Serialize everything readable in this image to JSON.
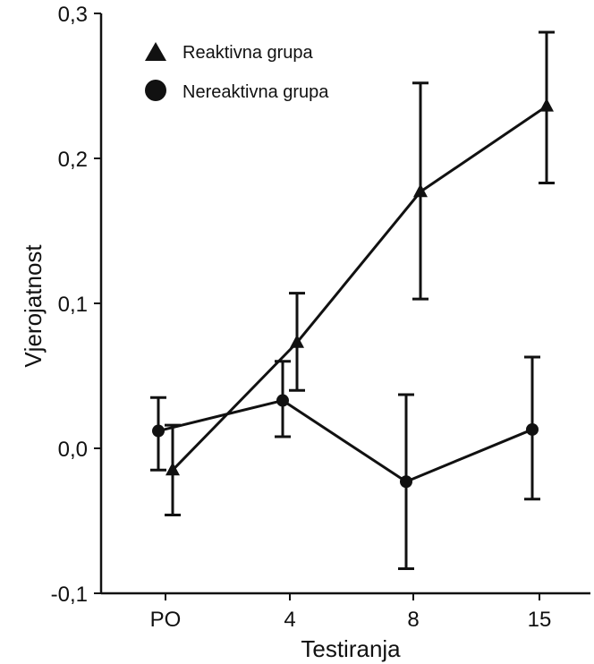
{
  "chart_data": {
    "type": "line",
    "xlabel": "Testiranja",
    "ylabel": "Vjerojatnost",
    "categories": [
      "PO",
      "4",
      "8",
      "15"
    ],
    "ylim": [
      -0.1,
      0.3
    ],
    "yticks": [
      -0.1,
      0.0,
      0.1,
      0.2,
      0.3
    ],
    "ytick_labels": [
      "-0,1",
      "0,0",
      "0,1",
      "0,2",
      "0,3"
    ],
    "grid": false,
    "legend_position": "top-left",
    "series": [
      {
        "name": "Reaktivna grupa",
        "marker": "triangle",
        "values": [
          -0.015,
          0.073,
          0.177,
          0.236
        ],
        "error_low": [
          -0.046,
          0.04,
          0.103,
          0.183
        ],
        "error_high": [
          0.016,
          0.107,
          0.252,
          0.287
        ]
      },
      {
        "name": "Nereaktivna grupa",
        "marker": "circle",
        "values": [
          0.012,
          0.033,
          -0.023,
          0.013
        ],
        "error_low": [
          -0.015,
          0.008,
          -0.083,
          -0.035
        ],
        "error_high": [
          0.035,
          0.06,
          0.037,
          0.063
        ]
      }
    ]
  }
}
